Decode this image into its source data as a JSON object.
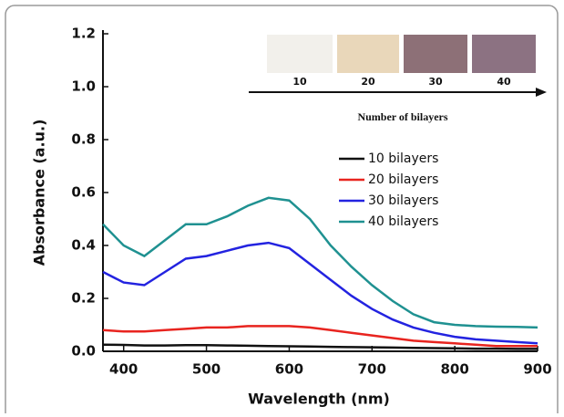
{
  "chart_data": {
    "type": "line",
    "x_label": "Wavelength (nm)",
    "y_label": "Absorbance (a.u.)",
    "x": [
      375,
      400,
      425,
      450,
      475,
      500,
      525,
      550,
      575,
      600,
      625,
      650,
      675,
      700,
      725,
      750,
      775,
      800,
      825,
      850,
      875,
      900
    ],
    "series": [
      {
        "name": "10 bilayers",
        "color": "#111111",
        "values": [
          0.025,
          0.024,
          0.022,
          0.022,
          0.023,
          0.023,
          0.022,
          0.021,
          0.02,
          0.019,
          0.018,
          0.017,
          0.016,
          0.015,
          0.014,
          0.013,
          0.012,
          0.011,
          0.01,
          0.01,
          0.009,
          0.009
        ]
      },
      {
        "name": "20 bilayers",
        "color": "#e8241f",
        "values": [
          0.08,
          0.075,
          0.075,
          0.08,
          0.085,
          0.09,
          0.09,
          0.095,
          0.095,
          0.095,
          0.09,
          0.08,
          0.07,
          0.06,
          0.05,
          0.04,
          0.035,
          0.03,
          0.025,
          0.02,
          0.02,
          0.02
        ]
      },
      {
        "name": "30 bilayers",
        "color": "#2323e0",
        "values": [
          0.3,
          0.26,
          0.25,
          0.3,
          0.35,
          0.36,
          0.38,
          0.4,
          0.41,
          0.39,
          0.33,
          0.27,
          0.21,
          0.16,
          0.12,
          0.09,
          0.07,
          0.055,
          0.045,
          0.04,
          0.035,
          0.03
        ]
      },
      {
        "name": "40 bilayers",
        "color": "#1f9191",
        "values": [
          0.48,
          0.4,
          0.36,
          0.42,
          0.48,
          0.48,
          0.51,
          0.55,
          0.58,
          0.57,
          0.5,
          0.4,
          0.32,
          0.25,
          0.19,
          0.14,
          0.11,
          0.1,
          0.095,
          0.093,
          0.092,
          0.09
        ]
      }
    ],
    "xlim": [
      375,
      900
    ],
    "xticks": [
      400,
      500,
      600,
      700,
      800,
      900
    ],
    "ylim": [
      0,
      1.2
    ],
    "yticks": [
      {
        "value": 0,
        "label": "0.0"
      },
      0.2,
      0.4,
      0.6,
      0.8,
      {
        "value": 1,
        "label": "1.0"
      },
      1.2
    ],
    "inset_labels": [
      "10",
      "20",
      "30",
      "40"
    ],
    "inset_title": "Number of bilayers"
  }
}
